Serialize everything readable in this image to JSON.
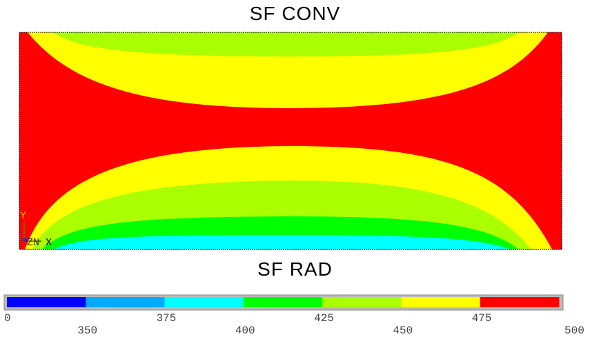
{
  "titles": {
    "top": "SF  CONV",
    "bottom": "SF  RAD"
  },
  "triad": {
    "y_label": "Y",
    "x_label": "X",
    "z_label": "ZN"
  },
  "contour_colors": {
    "red": "#ff0000",
    "yellow": "#ffff00",
    "yellow_green": "#aaff00",
    "green": "#00ff00",
    "cyan": "#00ffff",
    "triad_y": "#ffbb00",
    "triad_x": "#000000"
  },
  "legend": {
    "bands": [
      {
        "color": "#0000ff"
      },
      {
        "color": "#00aaff"
      },
      {
        "color": "#00ffff"
      },
      {
        "color": "#00ff00"
      },
      {
        "color": "#aaff00"
      },
      {
        "color": "#ffff00"
      },
      {
        "color": "#ff0000"
      }
    ],
    "top_labels": [
      "0",
      "375",
      "425",
      "475"
    ],
    "bottom_labels": [
      "350",
      "400",
      "450",
      "500"
    ]
  }
}
